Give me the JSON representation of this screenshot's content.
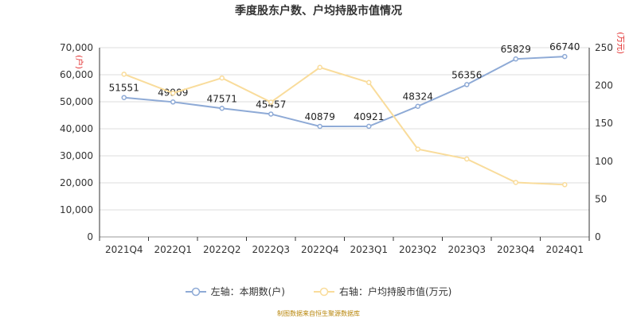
{
  "chart_data": {
    "type": "line",
    "title": "季度股东户数、户均持股市值情况",
    "categories": [
      "2021Q4",
      "2022Q1",
      "2022Q2",
      "2022Q3",
      "2022Q4",
      "2023Q1",
      "2023Q2",
      "2023Q3",
      "2023Q4",
      "2024Q1"
    ],
    "y_left": {
      "label": "(户)",
      "min": 0,
      "max": 70000,
      "ticks": [
        "0",
        "10,000",
        "20,000",
        "30,000",
        "40,000",
        "50,000",
        "60,000",
        "70,000"
      ]
    },
    "y_right": {
      "label": "(万元)",
      "min": 0,
      "max": 250,
      "ticks": [
        "0",
        "50",
        "100",
        "150",
        "200",
        "250"
      ]
    },
    "series": [
      {
        "name": "左轴：本期数(户)",
        "axis": "left",
        "color": "#8eaad6",
        "values": [
          51551,
          49909,
          47571,
          45457,
          40879,
          40921,
          48324,
          56356,
          65829,
          66740
        ],
        "labels": [
          "51551",
          "49909",
          "47571",
          "45457",
          "40879",
          "40921",
          "48324",
          "56356",
          "65829",
          "66740"
        ]
      },
      {
        "name": "右轴：户均持股市值(万元)",
        "axis": "right",
        "color": "#f9dc9b",
        "values": [
          215,
          190,
          210,
          178,
          224,
          204,
          116,
          103,
          72,
          69
        ]
      }
    ],
    "grid": true,
    "legend_position": "bottom"
  },
  "source": "制图数据来自恒生聚源数据库"
}
